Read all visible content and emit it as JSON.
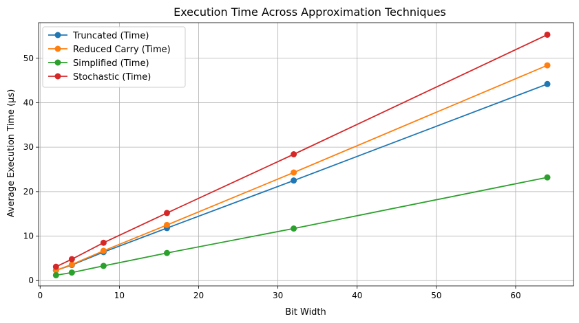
{
  "chart_data": {
    "type": "line",
    "title": "Execution Time Across Approximation Techniques",
    "xlabel": "Bit Width",
    "ylabel": "Average Execution Time (µs)",
    "xlim": [
      -0.2,
      67.3
    ],
    "ylim": [
      -1.2,
      58
    ],
    "xticks": [
      0,
      10,
      20,
      30,
      40,
      50,
      60
    ],
    "yticks": [
      0,
      10,
      20,
      30,
      40,
      50
    ],
    "grid": true,
    "legend_position": "top-left",
    "x": [
      2,
      4,
      8,
      16,
      32,
      64
    ],
    "series": [
      {
        "name": "Truncated (Time)",
        "color": "#1f77b4",
        "values": [
          2.3,
          3.5,
          6.4,
          11.8,
          22.5,
          44.2
        ]
      },
      {
        "name": "Reduced Carry (Time)",
        "color": "#ff7f0e",
        "values": [
          2.3,
          3.6,
          6.7,
          12.5,
          24.3,
          48.4
        ]
      },
      {
        "name": "Simplified (Time)",
        "color": "#2ca02c",
        "values": [
          1.2,
          1.8,
          3.3,
          6.2,
          11.7,
          23.2
        ]
      },
      {
        "name": "Stochastic (Time)",
        "color": "#d62728",
        "values": [
          3.1,
          4.8,
          8.5,
          15.2,
          28.4,
          55.3
        ]
      }
    ]
  }
}
